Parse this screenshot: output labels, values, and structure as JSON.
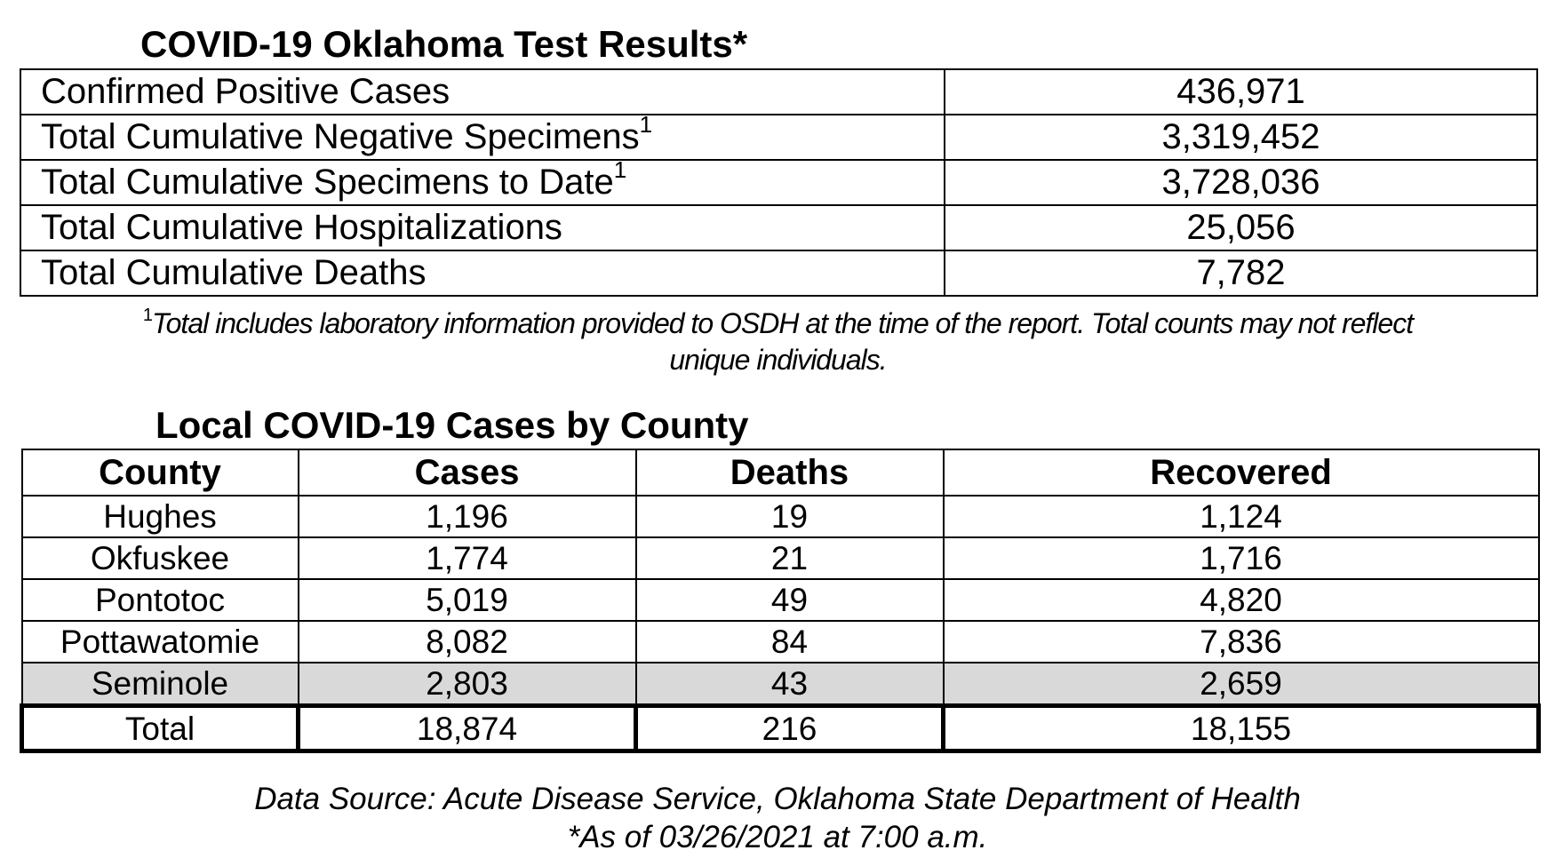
{
  "test_results": {
    "title": "COVID-19 Oklahoma Test Results*",
    "rows": [
      {
        "label": "Confirmed Positive Cases",
        "sup": "",
        "value": "436,971"
      },
      {
        "label": "Total Cumulative Negative Specimens",
        "sup": "1",
        "value": "3,319,452"
      },
      {
        "label": "Total Cumulative Specimens to Date",
        "sup": "1",
        "value": "3,728,036"
      },
      {
        "label": "Total Cumulative Hospitalizations",
        "sup": "",
        "value": "25,056"
      },
      {
        "label": "Total Cumulative Deaths",
        "sup": "",
        "value": "7,782"
      }
    ],
    "footnote_mark": "1",
    "footnote_line1": "Total includes laboratory information provided to OSDH at the time of the report. Total counts may not reflect",
    "footnote_line2": "unique individuals."
  },
  "county_cases": {
    "title": "Local COVID-19 Cases by County",
    "headers": [
      "County",
      "Cases",
      "Deaths",
      "Recovered"
    ],
    "rows": [
      [
        "Hughes",
        "1,196",
        "19",
        "1,124"
      ],
      [
        "Okfuskee",
        "1,774",
        "21",
        "1,716"
      ],
      [
        "Pontotoc",
        "5,019",
        "49",
        "4,820"
      ],
      [
        "Pottawatomie",
        "8,082",
        "84",
        "7,836"
      ],
      [
        "Seminole",
        "2,803",
        "43",
        "2,659"
      ]
    ],
    "highlight_row_color": "#d9d9d9",
    "total": [
      "Total",
      "18,874",
      "216",
      "18,155"
    ]
  },
  "source": {
    "line1": "Data Source: Acute Disease Service, Oklahoma State Department of Health",
    "line2": "*As of 03/26/2021 at 7:00 a.m."
  }
}
